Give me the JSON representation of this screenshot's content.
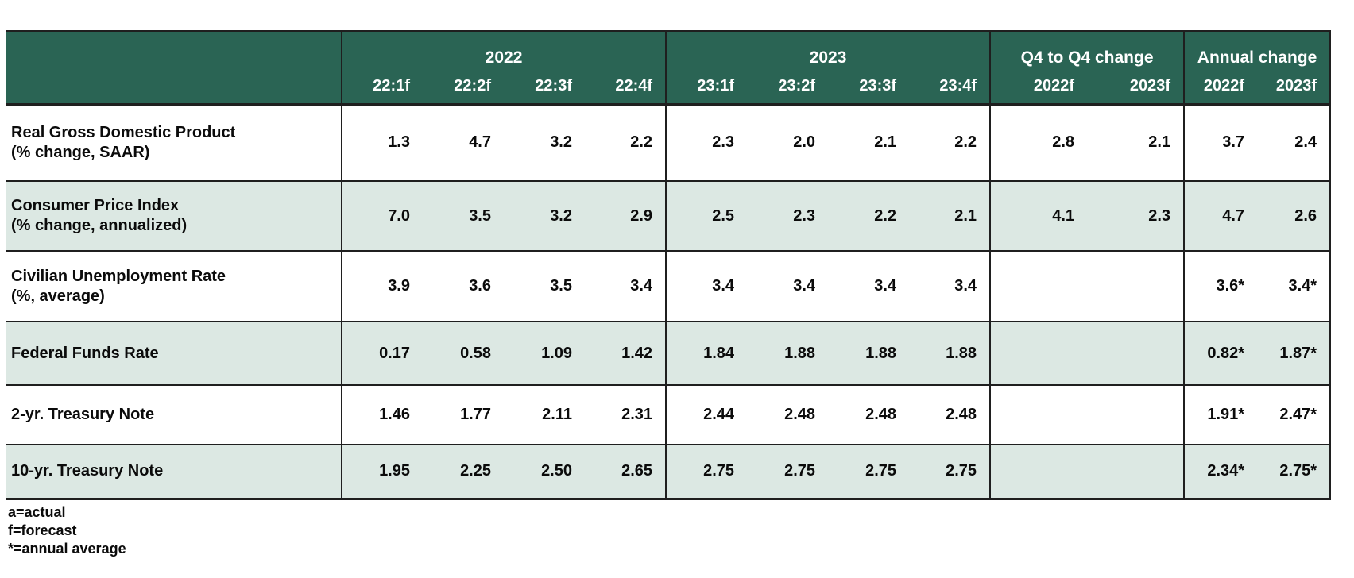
{
  "chart_data": {
    "type": "table",
    "column_groups": [
      {
        "label": "2022",
        "columns": [
          "22:1f",
          "22:2f",
          "22:3f",
          "22:4f"
        ]
      },
      {
        "label": "2023",
        "columns": [
          "23:1f",
          "23:2f",
          "23:3f",
          "23:4f"
        ]
      },
      {
        "label": "Q4 to Q4 change",
        "columns": [
          "2022f",
          "2023f"
        ]
      },
      {
        "label": "Annual change",
        "columns": [
          "2022f",
          "2023f"
        ]
      }
    ],
    "rows": [
      {
        "label": "Real Gross Domestic Product",
        "sublabel": "(% change, SAAR)",
        "q2022": [
          "1.3",
          "4.7",
          "3.2",
          "2.2"
        ],
        "q2023": [
          "2.3",
          "2.0",
          "2.1",
          "2.2"
        ],
        "q4_change": [
          "2.8",
          "2.1"
        ],
        "annual_change": [
          "3.7",
          "2.4"
        ]
      },
      {
        "label": "Consumer Price Index",
        "sublabel": "(% change, annualized)",
        "q2022": [
          "7.0",
          "3.5",
          "3.2",
          "2.9"
        ],
        "q2023": [
          "2.5",
          "2.3",
          "2.2",
          "2.1"
        ],
        "q4_change": [
          "4.1",
          "2.3"
        ],
        "annual_change": [
          "4.7",
          "2.6"
        ]
      },
      {
        "label": "Civilian Unemployment Rate",
        "sublabel": "(%, average)",
        "q2022": [
          "3.9",
          "3.6",
          "3.5",
          "3.4"
        ],
        "q2023": [
          "3.4",
          "3.4",
          "3.4",
          "3.4"
        ],
        "q4_change": [
          "",
          ""
        ],
        "annual_change": [
          "3.6*",
          "3.4*"
        ]
      },
      {
        "label": "Federal Funds Rate",
        "sublabel": "",
        "q2022": [
          "0.17",
          "0.58",
          "1.09",
          "1.42"
        ],
        "q2023": [
          "1.84",
          "1.88",
          "1.88",
          "1.88"
        ],
        "q4_change": [
          "",
          ""
        ],
        "annual_change": [
          "0.82*",
          "1.87*"
        ]
      },
      {
        "label": "2-yr. Treasury Note",
        "sublabel": "",
        "q2022": [
          "1.46",
          "1.77",
          "2.11",
          "2.31"
        ],
        "q2023": [
          "2.44",
          "2.48",
          "2.48",
          "2.48"
        ],
        "q4_change": [
          "",
          ""
        ],
        "annual_change": [
          "1.91*",
          "2.47*"
        ]
      },
      {
        "label": "10-yr. Treasury Note",
        "sublabel": "",
        "q2022": [
          "1.95",
          "2.25",
          "2.50",
          "2.65"
        ],
        "q2023": [
          "2.75",
          "2.75",
          "2.75",
          "2.75"
        ],
        "q4_change": [
          "",
          ""
        ],
        "annual_change": [
          "2.34*",
          "2.75*"
        ]
      }
    ],
    "footnotes": [
      "a=actual",
      "f=forecast",
      "*=annual average"
    ]
  },
  "colors": {
    "header_bg": "#2a6454",
    "header_text": "#ffffff",
    "shaded_row_bg": "#dce8e3",
    "border": "#1f1f1f",
    "body_text": "#0b0b0b"
  }
}
